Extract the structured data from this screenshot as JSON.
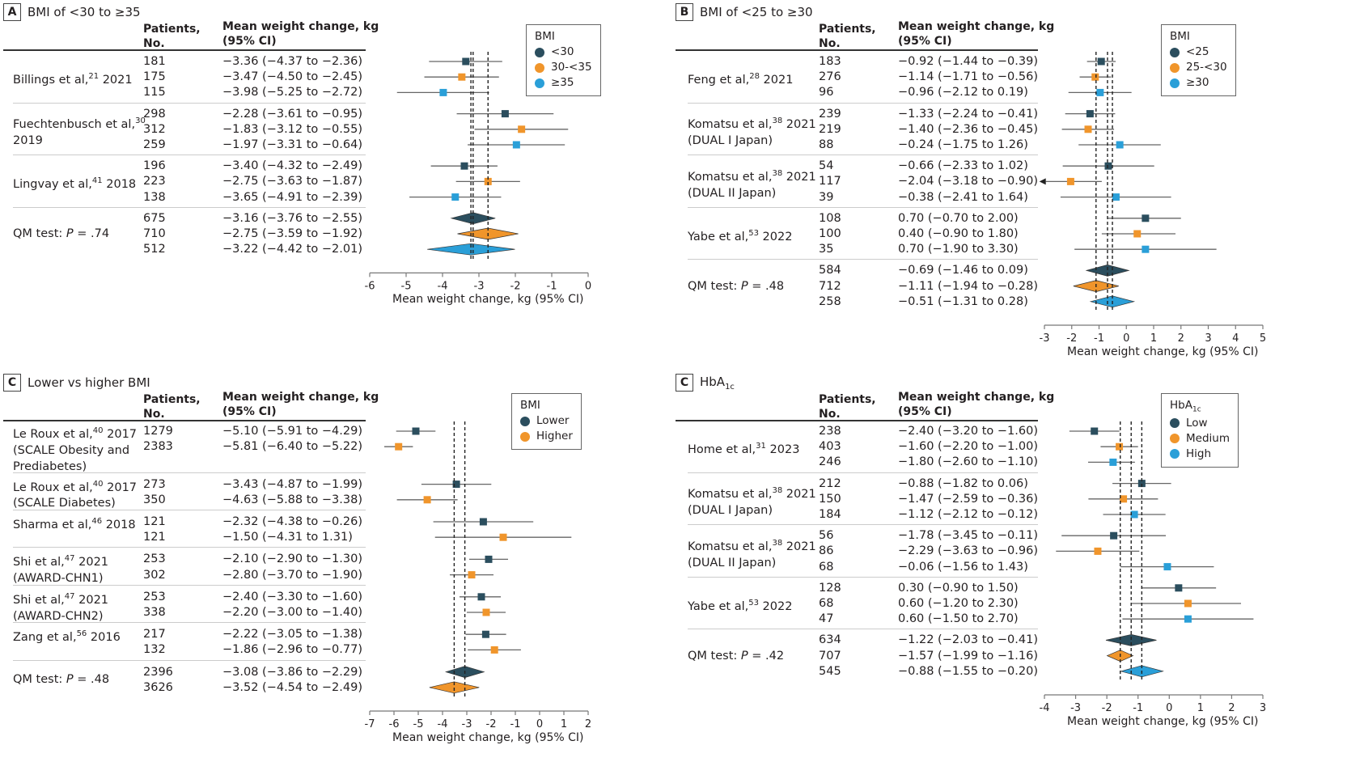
{
  "colors": {
    "dark": "#2b4e5e",
    "orange": "#f0952b",
    "blue": "#2a9fd8",
    "ci_line": "#666666",
    "axis": "#777777"
  },
  "common": {
    "hdr_patients_1": "Patients,",
    "hdr_patients_2": "No.",
    "hdr_mean_1": "Mean weight change, kg",
    "hdr_mean_2": "(95% CI)",
    "xlabel": "Mean weight change, kg (95% CI)"
  },
  "chart_data": [
    {
      "type": "forest",
      "panel_letter": "A",
      "title": "BMI of <30 to ≥35",
      "xlabel": "Mean weight change, kg (95% CI)",
      "xlim": [
        -6,
        0
      ],
      "ticks": [
        -6,
        -5,
        -4,
        -3,
        -2,
        -1,
        0
      ],
      "legend": {
        "title": "BMI",
        "entries": [
          "<30",
          "30-<35",
          "≥35"
        ],
        "placement": "top-right"
      },
      "reference_lines": [
        -3.16,
        -3.22,
        -2.75
      ],
      "studies": [
        {
          "name": "Billings et al,",
          "ref": "21",
          "year": " 2021",
          "extra": "",
          "rows": [
            {
              "group": 0,
              "n": "181",
              "est": -3.36,
              "lo": -4.37,
              "hi": -2.36,
              "text": "−3.36 (−4.37 to −2.36)"
            },
            {
              "group": 1,
              "n": "175",
              "est": -3.47,
              "lo": -4.5,
              "hi": -2.45,
              "text": "−3.47 (−4.50 to −2.45)"
            },
            {
              "group": 2,
              "n": "115",
              "est": -3.98,
              "lo": -5.25,
              "hi": -2.72,
              "text": "−3.98 (−5.25 to −2.72)"
            }
          ]
        },
        {
          "name": "Fuechtenbusch et al,",
          "ref": "30",
          "year": "",
          "extra": "2019",
          "rows": [
            {
              "group": 0,
              "n": "298",
              "est": -2.28,
              "lo": -3.61,
              "hi": -0.95,
              "text": "−2.28 (−3.61 to −0.95)"
            },
            {
              "group": 1,
              "n": "312",
              "est": -1.83,
              "lo": -3.12,
              "hi": -0.55,
              "text": "−1.83 (−3.12 to −0.55)"
            },
            {
              "group": 2,
              "n": "259",
              "est": -1.97,
              "lo": -3.31,
              "hi": -0.64,
              "text": "−1.97 (−3.31 to −0.64)"
            }
          ]
        },
        {
          "name": "Lingvay et al,",
          "ref": "41",
          "year": " 2018",
          "extra": "",
          "rows": [
            {
              "group": 0,
              "n": "196",
              "est": -3.4,
              "lo": -4.32,
              "hi": -2.49,
              "text": "−3.40 (−4.32 to −2.49)"
            },
            {
              "group": 1,
              "n": "223",
              "est": -2.75,
              "lo": -3.63,
              "hi": -1.87,
              "text": "−2.75 (−3.63 to −1.87)"
            },
            {
              "group": 2,
              "n": "138",
              "est": -3.65,
              "lo": -4.91,
              "hi": -2.39,
              "text": "−3.65 (−4.91 to −2.39)"
            }
          ]
        }
      ],
      "summary": {
        "label_prefix": "QM test: ",
        "label_p": "P",
        "label_value": " = .74",
        "rows": [
          {
            "group": 0,
            "n": "675",
            "est": -3.16,
            "lo": -3.76,
            "hi": -2.55,
            "text": "−3.16 (−3.76 to −2.55)"
          },
          {
            "group": 1,
            "n": "710",
            "est": -2.75,
            "lo": -3.59,
            "hi": -1.92,
            "text": "−2.75 (−3.59 to −1.92)"
          },
          {
            "group": 2,
            "n": "512",
            "est": -3.22,
            "lo": -4.42,
            "hi": -2.01,
            "text": "−3.22 (−4.42 to −2.01)"
          }
        ]
      }
    },
    {
      "type": "forest",
      "panel_letter": "B",
      "title": "BMI of <25 to ≥30",
      "xlabel": "Mean weight change, kg (95% CI)",
      "xlim": [
        -3,
        5
      ],
      "ticks": [
        -3,
        -2,
        -1,
        0,
        1,
        2,
        3,
        4,
        5
      ],
      "legend": {
        "title": "BMI",
        "entries": [
          "<25",
          "25-<30",
          "≥30"
        ],
        "placement": "top-right"
      },
      "reference_lines": [
        -1.11,
        -0.69,
        -0.51
      ],
      "studies": [
        {
          "name": "Feng et al,",
          "ref": "28",
          "year": " 2021",
          "extra": "",
          "rows": [
            {
              "group": 0,
              "n": "183",
              "est": -0.92,
              "lo": -1.44,
              "hi": -0.39,
              "text": "−0.92 (−1.44 to −0.39)"
            },
            {
              "group": 1,
              "n": "276",
              "est": -1.14,
              "lo": -1.71,
              "hi": -0.56,
              "text": "−1.14 (−1.71 to −0.56)"
            },
            {
              "group": 2,
              "n": "96",
              "est": -0.96,
              "lo": -2.12,
              "hi": 0.19,
              "text": "−0.96 (−2.12 to 0.19)"
            }
          ]
        },
        {
          "name": "Komatsu et al,",
          "ref": "38",
          "year": " 2021",
          "extra": "(DUAL I Japan)",
          "rows": [
            {
              "group": 0,
              "n": "239",
              "est": -1.33,
              "lo": -2.24,
              "hi": -0.41,
              "text": "−1.33 (−2.24 to −0.41)"
            },
            {
              "group": 1,
              "n": "219",
              "est": -1.4,
              "lo": -2.36,
              "hi": -0.45,
              "text": "−1.40 (−2.36 to −0.45)"
            },
            {
              "group": 2,
              "n": "88",
              "est": -0.24,
              "lo": -1.75,
              "hi": 1.26,
              "text": "−0.24 (−1.75 to 1.26)"
            }
          ]
        },
        {
          "name": "Komatsu et al,",
          "ref": "38",
          "year": " 2021",
          "extra": "(DUAL II Japan)",
          "rows": [
            {
              "group": 0,
              "n": "54",
              "est": -0.66,
              "lo": -2.33,
              "hi": 1.02,
              "text": "−0.66 (−2.33 to 1.02)"
            },
            {
              "group": 1,
              "n": "117",
              "est": -2.04,
              "lo": -3.18,
              "hi": -0.9,
              "text": "−2.04 (−3.18 to −0.90)"
            },
            {
              "group": 2,
              "n": "39",
              "est": -0.38,
              "lo": -2.41,
              "hi": 1.64,
              "text": "−0.38 (−2.41 to 1.64)"
            }
          ]
        },
        {
          "name": "Yabe et al,",
          "ref": "53",
          "year": " 2022",
          "extra": "",
          "rows": [
            {
              "group": 0,
              "n": "108",
              "est": 0.7,
              "lo": -0.7,
              "hi": 2.0,
              "text": "0.70 (−0.70 to 2.00)"
            },
            {
              "group": 1,
              "n": "100",
              "est": 0.4,
              "lo": -0.9,
              "hi": 1.8,
              "text": "0.40 (−0.90 to 1.80)"
            },
            {
              "group": 2,
              "n": "35",
              "est": 0.7,
              "lo": -1.9,
              "hi": 3.3,
              "text": "0.70 (−1.90 to 3.30)"
            }
          ]
        }
      ],
      "summary": {
        "label_prefix": "QM test: ",
        "label_p": "P",
        "label_value": " = .48",
        "rows": [
          {
            "group": 0,
            "n": "584",
            "est": -0.69,
            "lo": -1.46,
            "hi": 0.09,
            "text": "−0.69 (−1.46 to 0.09)"
          },
          {
            "group": 1,
            "n": "712",
            "est": -1.11,
            "lo": -1.94,
            "hi": -0.28,
            "text": "−1.11 (−1.94 to −0.28)"
          },
          {
            "group": 2,
            "n": "258",
            "est": -0.51,
            "lo": -1.31,
            "hi": 0.28,
            "text": "−0.51 (−1.31 to 0.28)"
          }
        ]
      }
    },
    {
      "type": "forest",
      "panel_letter": "C",
      "title": "Lower vs higher BMI",
      "xlabel": "Mean weight change, kg (95% CI)",
      "xlim": [
        -7,
        2
      ],
      "ticks": [
        -7,
        -6,
        -5,
        -4,
        -3,
        -2,
        -1,
        0,
        1,
        2
      ],
      "legend": {
        "title": "BMI",
        "entries": [
          "Lower",
          "Higher"
        ],
        "placement": "top-right"
      },
      "reference_lines": [
        -3.52,
        -3.08
      ],
      "studies": [
        {
          "name": "Le Roux et al,",
          "ref": "40",
          "year": " 2017",
          "extra": "(SCALE Obesity and\nPrediabetes)",
          "rows": [
            {
              "group": 0,
              "n": "1279",
              "est": -5.1,
              "lo": -5.91,
              "hi": -4.29,
              "text": "−5.10 (−5.91 to −4.29)"
            },
            {
              "group": 1,
              "n": "2383",
              "est": -5.81,
              "lo": -6.4,
              "hi": -5.22,
              "text": "−5.81 (−6.40 to −5.22)"
            }
          ]
        },
        {
          "name": "Le Roux et al,",
          "ref": "40",
          "year": " 2017",
          "extra": "(SCALE Diabetes)",
          "rows": [
            {
              "group": 0,
              "n": "273",
              "est": -3.43,
              "lo": -4.87,
              "hi": -1.99,
              "text": "−3.43 (−4.87 to −1.99)"
            },
            {
              "group": 1,
              "n": "350",
              "est": -4.63,
              "lo": -5.88,
              "hi": -3.38,
              "text": "−4.63 (−5.88 to −3.38)"
            }
          ]
        },
        {
          "name": "Sharma et al,",
          "ref": "46",
          "year": " 2018",
          "extra": "",
          "rows": [
            {
              "group": 0,
              "n": "121",
              "est": -2.32,
              "lo": -4.38,
              "hi": -0.26,
              "text": "−2.32 (−4.38 to −0.26)"
            },
            {
              "group": 1,
              "n": "121",
              "est": -1.5,
              "lo": -4.31,
              "hi": 1.31,
              "text": "−1.50 (−4.31 to 1.31)"
            }
          ]
        },
        {
          "name": "Shi et al,",
          "ref": "47",
          "year": " 2021",
          "extra": "(AWARD-CHN1)",
          "rows": [
            {
              "group": 0,
              "n": "253",
              "est": -2.1,
              "lo": -2.9,
              "hi": -1.3,
              "text": "−2.10 (−2.90 to −1.30)"
            },
            {
              "group": 1,
              "n": "302",
              "est": -2.8,
              "lo": -3.7,
              "hi": -1.9,
              "text": "−2.80 (−3.70 to −1.90)"
            }
          ]
        },
        {
          "name": "Shi et al,",
          "ref": "47",
          "year": " 2021",
          "extra": "(AWARD-CHN2)",
          "rows": [
            {
              "group": 0,
              "n": "253",
              "est": -2.4,
              "lo": -3.3,
              "hi": -1.6,
              "text": "−2.40 (−3.30 to −1.60)"
            },
            {
              "group": 1,
              "n": "338",
              "est": -2.2,
              "lo": -3.0,
              "hi": -1.4,
              "text": "−2.20 (−3.00 to −1.40)"
            }
          ]
        },
        {
          "name": "Zang et al,",
          "ref": "56",
          "year": " 2016",
          "extra": "",
          "rows": [
            {
              "group": 0,
              "n": "217",
              "est": -2.22,
              "lo": -3.05,
              "hi": -1.38,
              "text": "−2.22 (−3.05 to −1.38)"
            },
            {
              "group": 1,
              "n": "132",
              "est": -1.86,
              "lo": -2.96,
              "hi": -0.77,
              "text": "−1.86 (−2.96 to −0.77)"
            }
          ]
        }
      ],
      "summary": {
        "label_prefix": "QM test: ",
        "label_p": "P",
        "label_value": " = .48",
        "rows": [
          {
            "group": 0,
            "n": "2396",
            "est": -3.08,
            "lo": -3.86,
            "hi": -2.29,
            "text": "−3.08 (−3.86 to −2.29)"
          },
          {
            "group": 1,
            "n": "3626",
            "est": -3.52,
            "lo": -4.54,
            "hi": -2.49,
            "text": "−3.52 (−4.54 to −2.49)"
          }
        ]
      }
    },
    {
      "type": "forest",
      "panel_letter": "C",
      "title": "HbA",
      "title_sub": "1c",
      "xlabel": "Mean weight change, kg (95% CI)",
      "xlim": [
        -4,
        3
      ],
      "ticks": [
        -4,
        -3,
        -2,
        -1,
        0,
        1,
        2,
        3
      ],
      "legend": {
        "title": "HbA",
        "title_sub": "1c",
        "entries": [
          "Low",
          "Medium",
          "High"
        ],
        "placement": "top-right"
      },
      "reference_lines": [
        -1.57,
        -1.22,
        -0.88
      ],
      "studies": [
        {
          "name": "Home et al,",
          "ref": "31",
          "year": " 2023",
          "extra": "",
          "rows": [
            {
              "group": 0,
              "n": "238",
              "est": -2.4,
              "lo": -3.2,
              "hi": -1.6,
              "text": "−2.40 (−3.20 to −1.60)"
            },
            {
              "group": 1,
              "n": "403",
              "est": -1.6,
              "lo": -2.2,
              "hi": -1.0,
              "text": "−1.60 (−2.20 to −1.00)"
            },
            {
              "group": 2,
              "n": "246",
              "est": -1.8,
              "lo": -2.6,
              "hi": -1.1,
              "text": "−1.80 (−2.60 to −1.10)"
            }
          ]
        },
        {
          "name": "Komatsu et al,",
          "ref": "38",
          "year": " 2021",
          "extra": "(DUAL I Japan)",
          "rows": [
            {
              "group": 0,
              "n": "212",
              "est": -0.88,
              "lo": -1.82,
              "hi": 0.06,
              "text": "−0.88 (−1.82 to 0.06)"
            },
            {
              "group": 1,
              "n": "150",
              "est": -1.47,
              "lo": -2.59,
              "hi": -0.36,
              "text": "−1.47 (−2.59 to −0.36)"
            },
            {
              "group": 2,
              "n": "184",
              "est": -1.12,
              "lo": -2.12,
              "hi": -0.12,
              "text": "−1.12 (−2.12 to −0.12)"
            }
          ]
        },
        {
          "name": "Komatsu et al,",
          "ref": "38",
          "year": " 2021",
          "extra": "(DUAL II Japan)",
          "rows": [
            {
              "group": 0,
              "n": "56",
              "est": -1.78,
              "lo": -3.45,
              "hi": -0.11,
              "text": "−1.78 (−3.45 to −0.11)"
            },
            {
              "group": 1,
              "n": "86",
              "est": -2.29,
              "lo": -3.63,
              "hi": -0.96,
              "text": "−2.29 (−3.63 to −0.96)"
            },
            {
              "group": 2,
              "n": "68",
              "est": -0.06,
              "lo": -1.56,
              "hi": 1.43,
              "text": "−0.06 (−1.56 to 1.43)"
            }
          ]
        },
        {
          "name": "Yabe et al,",
          "ref": "53",
          "year": " 2022",
          "extra": "",
          "rows": [
            {
              "group": 0,
              "n": "128",
              "est": 0.3,
              "lo": -0.9,
              "hi": 1.5,
              "text": "0.30 (−0.90 to 1.50)"
            },
            {
              "group": 1,
              "n": "68",
              "est": 0.6,
              "lo": -1.2,
              "hi": 2.3,
              "text": "0.60 (−1.20 to 2.30)"
            },
            {
              "group": 2,
              "n": "47",
              "est": 0.6,
              "lo": -1.5,
              "hi": 2.7,
              "text": "0.60 (−1.50 to 2.70)"
            }
          ]
        }
      ],
      "summary": {
        "label_prefix": "QM test: ",
        "label_p": "P",
        "label_value": " = .42",
        "rows": [
          {
            "group": 0,
            "n": "634",
            "est": -1.22,
            "lo": -2.03,
            "hi": -0.41,
            "text": "−1.22 (−2.03 to −0.41)"
          },
          {
            "group": 1,
            "n": "707",
            "est": -1.57,
            "lo": -1.99,
            "hi": -1.16,
            "text": "−1.57 (−1.99 to −1.16)"
          },
          {
            "group": 2,
            "n": "545",
            "est": -0.88,
            "lo": -1.55,
            "hi": -0.2,
            "text": "−0.88 (−1.55 to −0.20)"
          }
        ]
      }
    }
  ]
}
